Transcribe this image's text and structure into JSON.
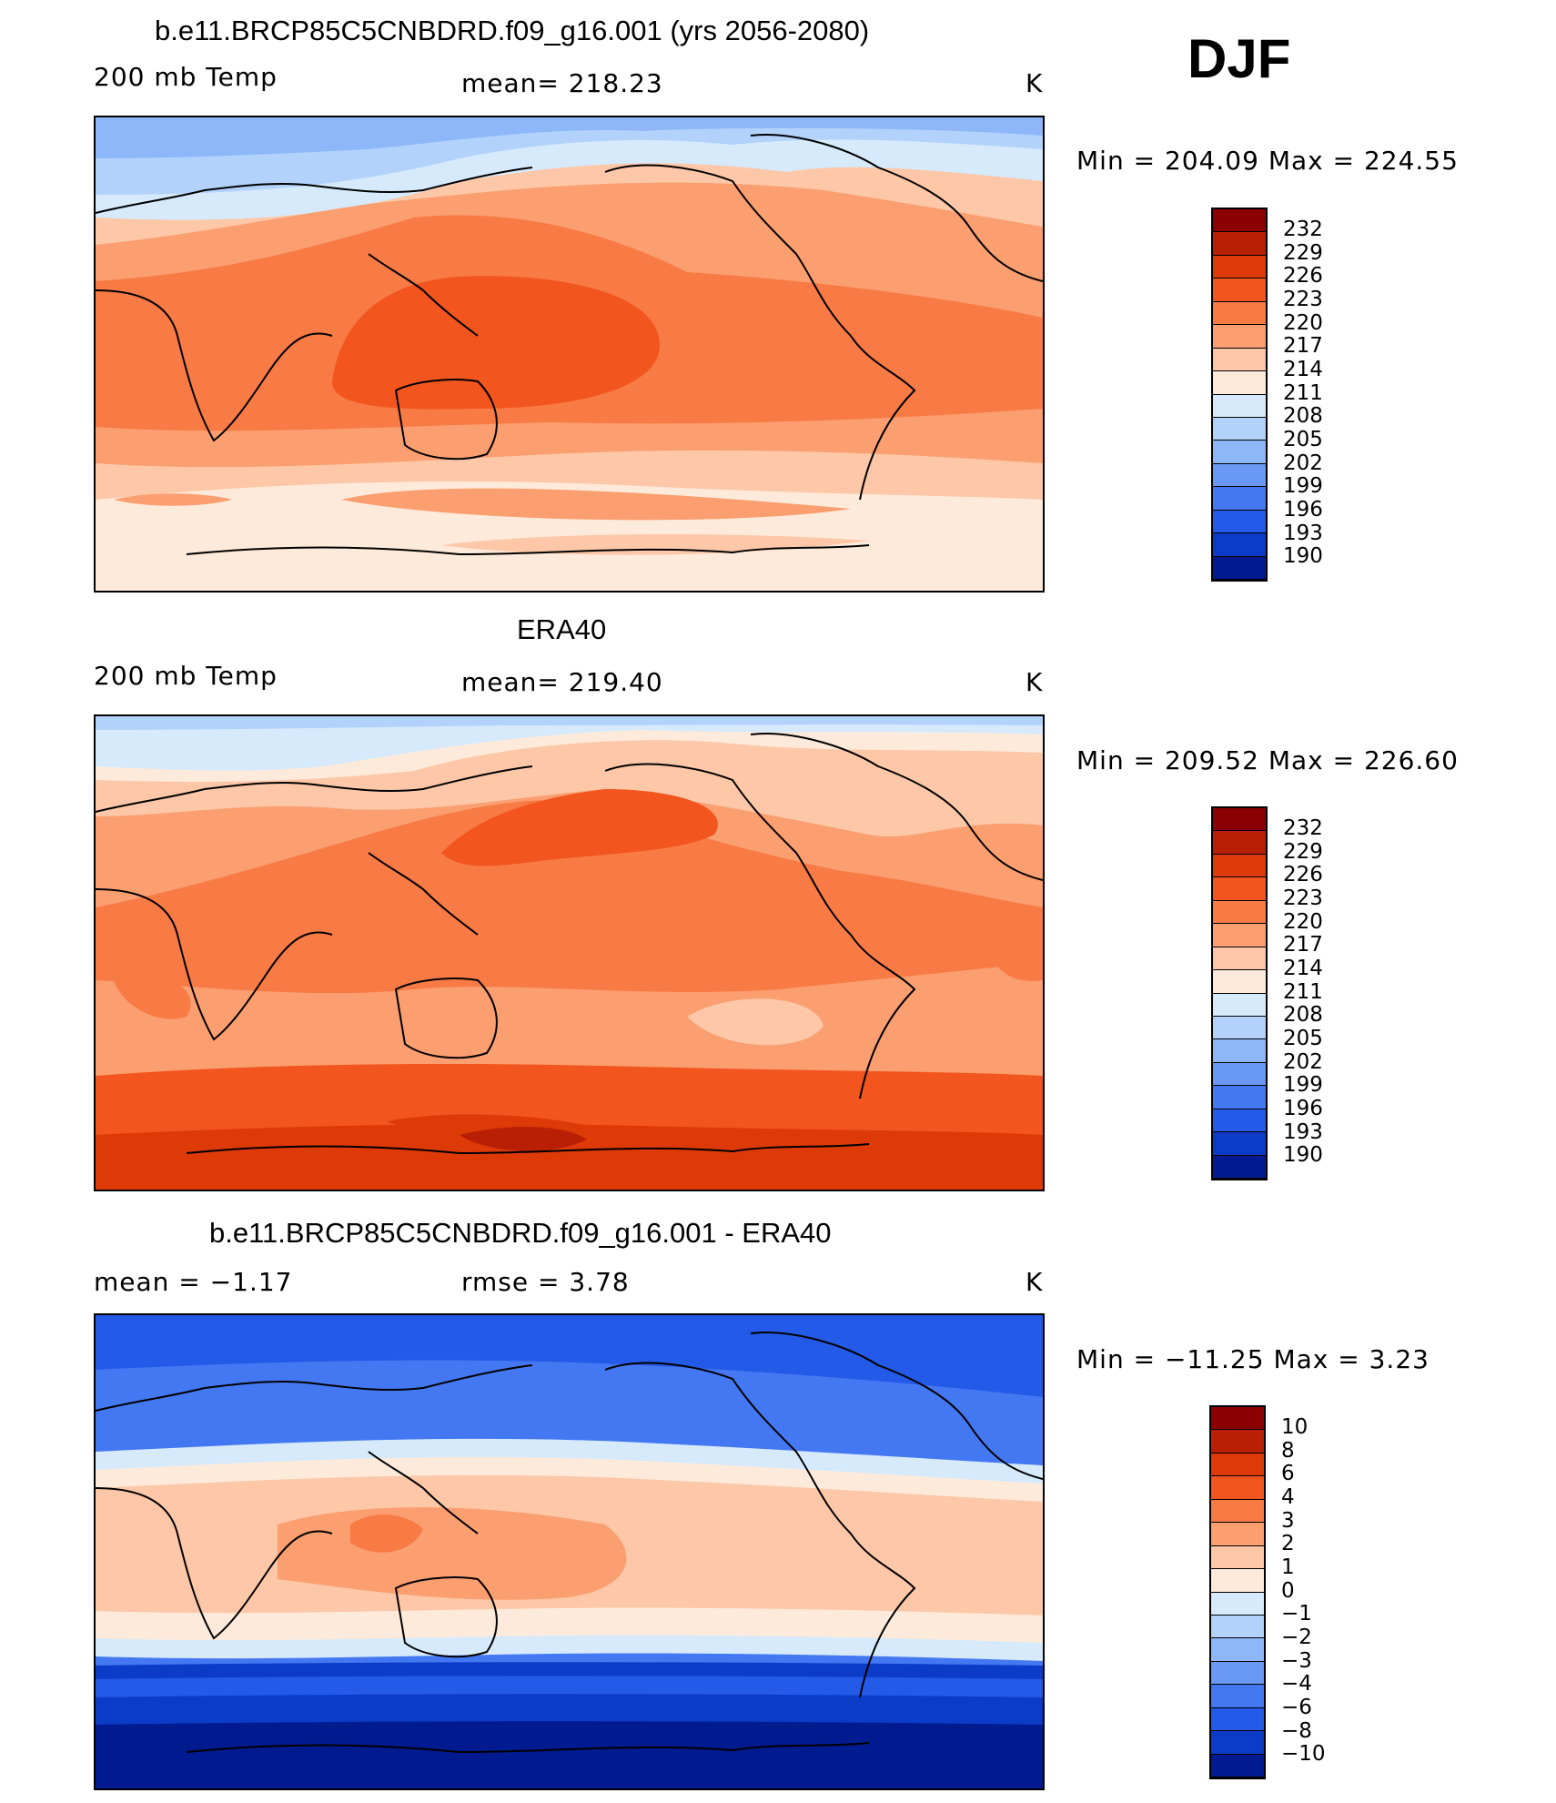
{
  "season": "DJF",
  "panels": [
    {
      "title": "b.e11.BRCP85C5CNBDRD.f09_g16.001 (yrs 2056-2080)",
      "left_label": "200 mb Temp",
      "center_label": "mean=  218.23",
      "units": "K",
      "minmax": "Min  =  204.09  Max  =  224.55",
      "colorbar_ticks": [
        "232",
        "229",
        "226",
        "223",
        "220",
        "217",
        "214",
        "211",
        "208",
        "205",
        "202",
        "199",
        "196",
        "193",
        "190"
      ],
      "colors": [
        "#8b0000",
        "#b81f05",
        "#de3a08",
        "#f2551e",
        "#f87a45",
        "#fb9e70",
        "#fdc7a8",
        "#feeadb",
        "#d6eafb",
        "#b2d2fb",
        "#8db7f8",
        "#6a98f5",
        "#4478f2",
        "#245ae8",
        "#0b3bc7",
        "#001a8f"
      ]
    },
    {
      "title": "ERA40",
      "left_label": "200 mb Temp",
      "center_label": "mean=  219.40",
      "units": "K",
      "minmax": "Min  =  209.52  Max  =  226.60",
      "colorbar_ticks": [
        "232",
        "229",
        "226",
        "223",
        "220",
        "217",
        "214",
        "211",
        "208",
        "205",
        "202",
        "199",
        "196",
        "193",
        "190"
      ],
      "colors": [
        "#8b0000",
        "#b81f05",
        "#de3a08",
        "#f2551e",
        "#f87a45",
        "#fb9e70",
        "#fdc7a8",
        "#feeadb",
        "#d6eafb",
        "#b2d2fb",
        "#8db7f8",
        "#6a98f5",
        "#4478f2",
        "#245ae8",
        "#0b3bc7",
        "#001a8f"
      ]
    },
    {
      "title": "b.e11.BRCP85C5CNBDRD.f09_g16.001 - ERA40",
      "left_label": "mean  =     −1.17",
      "center_label": "rmse  =     3.78",
      "units": "K",
      "minmax": "Min  =  −11.25  Max  =     3.23",
      "colorbar_ticks": [
        "10",
        "8",
        "6",
        "4",
        "3",
        "2",
        "1",
        "0",
        "−1",
        "−2",
        "−3",
        "−4",
        "−6",
        "−8",
        "−10"
      ],
      "colors": [
        "#8b0000",
        "#b81f05",
        "#de3a08",
        "#f2551e",
        "#f87a45",
        "#fb9e70",
        "#fdc7a8",
        "#feeadb",
        "#d6eafb",
        "#b2d2fb",
        "#8db7f8",
        "#6a98f5",
        "#4478f2",
        "#245ae8",
        "#0b3bc7",
        "#001a8f"
      ]
    }
  ]
}
